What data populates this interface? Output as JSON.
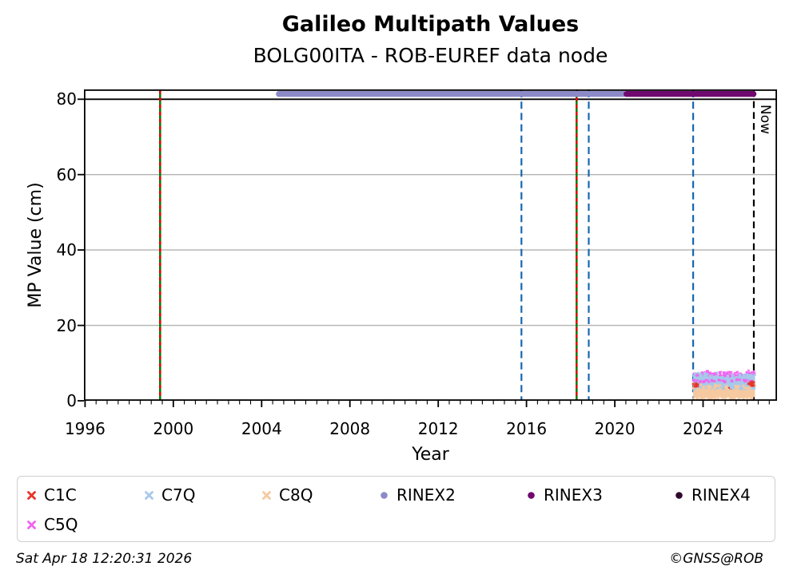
{
  "chart_data": {
    "type": "scatter",
    "title": "Galileo Multipath Values",
    "subtitle": "BOLG00ITA - ROB-EUREF data node",
    "xlabel": "Year",
    "ylabel": "MP Value (cm)",
    "xlim": [
      1995.95,
      2027.35
    ],
    "ylim": [
      0,
      82.6
    ],
    "x_major_ticks": [
      1996,
      2000,
      2004,
      2008,
      2012,
      2016,
      2020,
      2024
    ],
    "x_minor_step": 0.5,
    "y_major_ticks": [
      80,
      60,
      40,
      20,
      0
    ],
    "gridlines_y": [
      20,
      40,
      60
    ],
    "hline_y": 80,
    "now_line": {
      "x": 2026.3,
      "label": "Now"
    },
    "colors": {
      "grid": "#b2b2b2",
      "spine": "#000000",
      "green_line": "#007a00",
      "red_dash": "#e60000",
      "blue_dashed": "#1767b1",
      "now_line": "#000000"
    },
    "vlines": [
      {
        "x": 1999.4,
        "style": "green-red-dashed"
      },
      {
        "x": 2018.27,
        "style": "green-red-dashed"
      },
      {
        "x": 2015.77,
        "style": "blue-dashed"
      },
      {
        "x": 2018.82,
        "style": "blue-dashed"
      },
      {
        "x": 2023.55,
        "style": "blue-dashed"
      }
    ],
    "rinex_bars": [
      {
        "name": "RINEX2",
        "x_start": 2004.65,
        "x_end": 2020.55,
        "y": 81.4,
        "color": "#8d8ac8"
      },
      {
        "name": "RINEX3",
        "x_start": 2020.4,
        "x_end": 2026.42,
        "y": 81.4,
        "color": "#70096f"
      }
    ],
    "series": [
      {
        "name": "C5Q",
        "marker": "x",
        "color": "#f163f1",
        "x_start": 2023.55,
        "x_end": 2026.35,
        "y_min": 5.45,
        "y_max": 7.05
      },
      {
        "name": "C1C",
        "marker": "x",
        "color": "#e6352b",
        "x_start": 2023.55,
        "x_end": 2026.35,
        "y_min": 2.9,
        "y_max": 4.8
      },
      {
        "name": "C7Q",
        "marker": "x",
        "color": "#a7c9ea",
        "x_start": 2023.55,
        "x_end": 2026.35,
        "y_min": 3.55,
        "y_max": 6.35
      },
      {
        "name": "C8Q",
        "marker": "x",
        "color": "#f6c9a0",
        "x_start": 2023.55,
        "x_end": 2026.35,
        "y_min": 0.9,
        "y_max": 3.45
      }
    ]
  },
  "legend": {
    "entries": [
      {
        "label": "C1C",
        "marker": "x",
        "color": "#e6352b"
      },
      {
        "label": "C7Q",
        "marker": "x",
        "color": "#a7c9ea"
      },
      {
        "label": "C8Q",
        "marker": "x",
        "color": "#f6c9a0"
      },
      {
        "label": "RINEX2",
        "marker": "circle",
        "color": "#8d8ac8"
      },
      {
        "label": "RINEX3",
        "marker": "circle",
        "color": "#70096f"
      },
      {
        "label": "RINEX4",
        "marker": "circle",
        "color": "#30082e"
      },
      {
        "label": "C5Q",
        "marker": "x",
        "color": "#f163f1"
      }
    ]
  },
  "footer": {
    "timestamp": "Sat Apr 18 12:20:31 2026",
    "credit": "©GNSS@ROB"
  }
}
